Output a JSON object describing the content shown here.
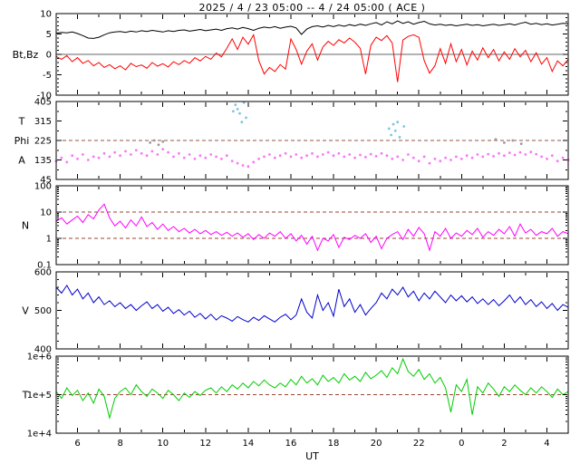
{
  "chart_data": {
    "type": "multi-panel-line",
    "title": "2025 / 4 / 23  05:00 -- 4 / 24  05:00 ( ACE )",
    "x_axis": {
      "label": "UT",
      "start": 5,
      "end": 29,
      "sample_step": 0.25,
      "minor_tick_step": 1,
      "major_tick_hours": [
        6,
        8,
        10,
        12,
        14,
        16,
        18,
        20,
        22,
        24,
        26,
        28
      ],
      "major_tick_labels": [
        "6",
        "8",
        "10",
        "12",
        "14",
        "16",
        "18",
        "20",
        "22",
        "0",
        "2",
        "4"
      ]
    },
    "panels": [
      {
        "name": "magnetic-field",
        "type": "line",
        "ylabel": "Bt,Bz",
        "ylim": [
          -10,
          10
        ],
        "yticks": [
          10,
          5,
          0,
          -5,
          -10
        ],
        "ytick_labels": [
          "10",
          "5",
          "0",
          "-5",
          "-10"
        ],
        "ytick_minor_step": 1,
        "log": false,
        "hlines": [
          {
            "y": 0,
            "style": "solid",
            "color": "#666666"
          }
        ],
        "series": [
          {
            "name": "Bt",
            "color": "#000000",
            "values": [
              5.2,
              5.4,
              5.3,
              5.5,
              5.1,
              4.6,
              4.0,
              3.9,
              4.2,
              4.8,
              5.3,
              5.5,
              5.6,
              5.4,
              5.7,
              5.5,
              5.8,
              5.6,
              5.9,
              5.7,
              5.5,
              5.8,
              5.6,
              5.9,
              6.0,
              5.7,
              5.9,
              6.1,
              5.8,
              6.0,
              6.2,
              5.9,
              6.3,
              6.5,
              6.2,
              6.6,
              6.3,
              5.9,
              6.4,
              6.7,
              6.5,
              6.8,
              6.4,
              6.7,
              6.9,
              6.5,
              4.9,
              6.2,
              6.8,
              7.0,
              6.7,
              7.1,
              6.8,
              7.2,
              6.9,
              7.3,
              7.0,
              7.4,
              7.1,
              7.5,
              7.8,
              7.2,
              8.0,
              7.5,
              8.2,
              7.6,
              8.0,
              7.4,
              7.8,
              8.1,
              7.5,
              7.2,
              7.4,
              7.1,
              7.3,
              7.0,
              7.2,
              7.4,
              7.1,
              7.3,
              7.0,
              7.2,
              7.4,
              7.1,
              7.3,
              7.5,
              7.2,
              7.6,
              7.9,
              7.4,
              7.6,
              7.3,
              7.5,
              7.2,
              7.4,
              7.6,
              7.5
            ]
          },
          {
            "name": "Bz",
            "color": "#ff0000",
            "values": [
              -0.5,
              -1.2,
              -0.3,
              -1.8,
              -0.8,
              -2.2,
              -1.5,
              -2.8,
              -2.0,
              -3.2,
              -2.5,
              -3.5,
              -2.8,
              -3.8,
              -2.2,
              -3.0,
              -2.6,
              -3.4,
              -2.0,
              -2.9,
              -2.3,
              -3.1,
              -1.8,
              -2.5,
              -1.5,
              -2.2,
              -0.8,
              -1.6,
              -0.5,
              -1.2,
              0.3,
              -0.6,
              1.5,
              3.8,
              1.2,
              4.2,
              2.5,
              4.8,
              -1.5,
              -4.8,
              -3.2,
              -4.2,
              -2.5,
              -3.6,
              3.8,
              1.2,
              -2.4,
              0.8,
              2.6,
              -1.4,
              1.8,
              3.2,
              2.2,
              3.6,
              2.8,
              4.0,
              3.0,
              1.5,
              -4.8,
              2.2,
              4.2,
              3.4,
              4.6,
              2.8,
              -6.8,
              3.5,
              4.4,
              4.8,
              4.2,
              -1.5,
              -4.6,
              -2.8,
              1.4,
              -2.2,
              2.6,
              -1.8,
              1.2,
              -2.6,
              0.8,
              -1.4,
              1.6,
              -0.8,
              1.2,
              -1.6,
              0.6,
              -1.2,
              1.4,
              -0.6,
              1.0,
              -1.8,
              0.4,
              -2.4,
              -0.8,
              -4.2,
              -1.6,
              -2.8,
              -1.2
            ]
          }
        ]
      },
      {
        "name": "phi-angle",
        "type": "scatter",
        "ylabels": [
          {
            "text": "T",
            "align_y": 315
          },
          {
            "text": "Phi",
            "align_y": 225
          },
          {
            "text": "A",
            "align_y": 135
          }
        ],
        "ylim": [
          45,
          405
        ],
        "yticks": [
          405,
          315,
          225,
          135,
          45
        ],
        "ytick_labels": [
          "405",
          "315",
          "225",
          "135",
          "45"
        ],
        "ytick_minor_step": 45,
        "log": false,
        "hlines": [
          {
            "y": 225,
            "style": "dashed",
            "color": "#99553f"
          }
        ],
        "series": [
          {
            "name": "Phi",
            "color": "#f878f8",
            "values": [
              130,
              145,
              125,
              155,
              140,
              160,
              135,
              150,
              145,
              165,
              150,
              170,
              155,
              175,
              160,
              180,
              165,
              155,
              175,
              160,
              185,
              170,
              150,
              165,
              145,
              160,
              140,
              155,
              145,
              160,
              150,
              140,
              155,
              130,
              120,
              110,
              105,
              125,
              140,
              150,
              160,
              145,
              155,
              165,
              150,
              160,
              145,
              155,
              165,
              150,
              160,
              170,
              155,
              165,
              150,
              160,
              145,
              158,
              148,
              162,
              152,
              165,
              155,
              140,
              150,
              135,
              160,
              145,
              130,
              150,
              120,
              140,
              130,
              145,
              135,
              150,
              140,
              155,
              145,
              160,
              150,
              162,
              152,
              165,
              155,
              168,
              158,
              170,
              160,
              172,
              162,
              150,
              140,
              155,
              130,
              145,
              135
            ]
          },
          {
            "name": "Phi-high",
            "color": "#7fc4e0",
            "x": [
              13.3,
              13.4,
              13.5,
              13.6,
              13.7,
              13.8,
              13.9,
              20.6,
              20.7,
              20.8,
              20.9,
              21.0,
              21.1,
              21.3
            ],
            "y": [
              360,
              390,
              370,
              350,
              310,
              400,
              330,
              280,
              250,
              300,
              270,
              310,
              240,
              290
            ]
          },
          {
            "name": "Phi-mid",
            "color": "#9a9a9a",
            "x": [
              9.4,
              9.6,
              9.8,
              10.0,
              25.6,
              26.0,
              26.4,
              26.8
            ],
            "y": [
              215,
              225,
              205,
              220,
              230,
              215,
              225,
              210
            ]
          }
        ]
      },
      {
        "name": "density",
        "type": "line",
        "ylabel": "N",
        "ylim": [
          0.1,
          100
        ],
        "yticks": [
          100,
          10,
          1,
          0.1
        ],
        "ytick_labels": [
          "100",
          "10",
          "1",
          "0.1"
        ],
        "log": true,
        "hlines": [
          {
            "y": 10,
            "style": "dashed",
            "color": "#994433"
          },
          {
            "y": 1,
            "style": "dashed",
            "color": "#994433"
          }
        ],
        "series": [
          {
            "name": "N",
            "color": "#ff00ff",
            "values": [
              4.5,
              6.0,
              3.5,
              5.0,
              7.0,
              4.0,
              8.0,
              5.5,
              12.0,
              20.0,
              6.0,
              3.0,
              4.5,
              2.5,
              5.0,
              3.0,
              6.5,
              2.8,
              4.0,
              2.2,
              3.5,
              2.0,
              2.8,
              1.8,
              2.4,
              1.6,
              2.2,
              1.5,
              2.0,
              1.4,
              1.8,
              1.3,
              1.7,
              1.2,
              1.6,
              1.1,
              1.5,
              0.9,
              1.4,
              1.0,
              1.6,
              1.2,
              1.8,
              1.0,
              1.5,
              0.8,
              1.3,
              0.6,
              1.2,
              0.35,
              1.0,
              0.8,
              1.4,
              0.45,
              1.1,
              0.9,
              1.3,
              1.0,
              1.5,
              0.7,
              1.2,
              0.4,
              1.0,
              1.4,
              1.8,
              0.9,
              2.2,
              1.2,
              2.6,
              1.5,
              0.35,
              1.8,
              1.2,
              2.4,
              1.0,
              1.6,
              1.2,
              2.0,
              1.4,
              2.4,
              1.1,
              1.8,
              1.3,
              2.2,
              1.5,
              2.8,
              1.2,
              3.5,
              1.6,
              2.2,
              1.3,
              1.8,
              1.5,
              2.4,
              1.2,
              1.8,
              1.5
            ]
          }
        ]
      },
      {
        "name": "velocity",
        "type": "line",
        "ylabel": "V",
        "ylim": [
          400,
          600
        ],
        "yticks": [
          600,
          500,
          400
        ],
        "ytick_labels": [
          "600",
          "500",
          "400"
        ],
        "ytick_minor_step": 20,
        "log": false,
        "hlines": [],
        "series": [
          {
            "name": "V",
            "color": "#0000cc",
            "values": [
              560,
              545,
              565,
              540,
              555,
              530,
              545,
              520,
              535,
              515,
              525,
              510,
              520,
              505,
              515,
              500,
              512,
              522,
              505,
              515,
              498,
              508,
              492,
              502,
              488,
              498,
              482,
              492,
              478,
              490,
              475,
              486,
              480,
              472,
              484,
              476,
              470,
              482,
              474,
              486,
              478,
              470,
              482,
              490,
              476,
              488,
              530,
              495,
              480,
              540,
              500,
              520,
              485,
              555,
              510,
              530,
              495,
              515,
              488,
              505,
              520,
              545,
              530,
              555,
              540,
              560,
              535,
              550,
              525,
              545,
              530,
              550,
              535,
              520,
              540,
              525,
              538,
              522,
              535,
              518,
              530,
              515,
              528,
              512,
              525,
              540,
              520,
              535,
              515,
              528,
              510,
              522,
              505,
              518,
              500,
              515,
              508
            ]
          }
        ]
      },
      {
        "name": "temperature",
        "type": "line",
        "ylabel": "T",
        "ylim": [
          10000,
          1000000
        ],
        "yticks": [
          1000000,
          100000,
          10000
        ],
        "ytick_labels": [
          "1e+6",
          "1e+5",
          "1e+4"
        ],
        "log": true,
        "hlines": [
          {
            "y": 100000,
            "style": "dashed",
            "color": "#994433"
          }
        ],
        "series": [
          {
            "name": "T",
            "color": "#00cc00",
            "values": [
              120000,
              80000,
              150000,
              95000,
              130000,
              70000,
              110000,
              60000,
              140000,
              90000,
              25000,
              80000,
              120000,
              150000,
              100000,
              180000,
              120000,
              90000,
              140000,
              110000,
              80000,
              130000,
              100000,
              70000,
              110000,
              85000,
              120000,
              95000,
              130000,
              150000,
              110000,
              160000,
              120000,
              180000,
              140000,
              200000,
              150000,
              220000,
              170000,
              240000,
              180000,
              150000,
              200000,
              160000,
              250000,
              180000,
              300000,
              200000,
              260000,
              180000,
              320000,
              220000,
              280000,
              200000,
              350000,
              240000,
              300000,
              220000,
              380000,
              260000,
              320000,
              420000,
              280000,
              500000,
              350000,
              850000,
              400000,
              300000,
              450000,
              250000,
              350000,
              200000,
              280000,
              150000,
              35000,
              180000,
              120000,
              250000,
              30000,
              160000,
              110000,
              200000,
              140000,
              90000,
              160000,
              120000,
              180000,
              130000,
              100000,
              150000,
              110000,
              160000,
              120000,
              85000,
              140000,
              100000,
              120000
            ]
          }
        ]
      }
    ]
  }
}
